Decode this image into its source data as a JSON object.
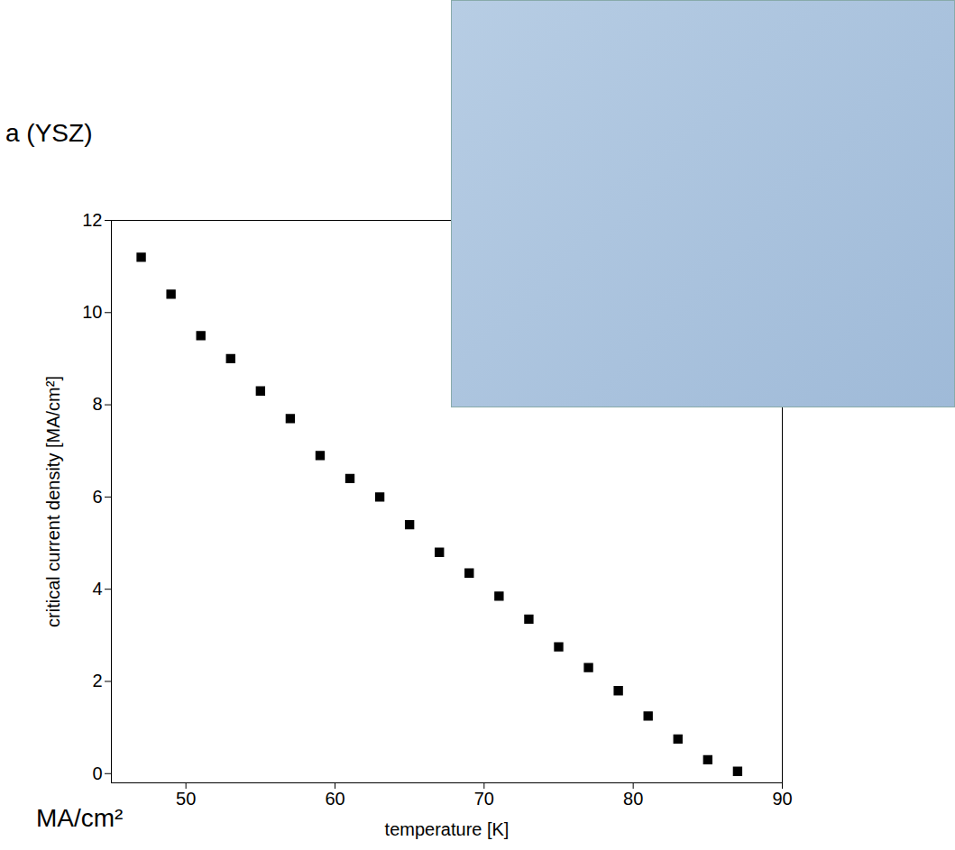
{
  "chart_data": {
    "type": "scatter",
    "x_label": "temperature [K]",
    "y_label": "critical current density [MA/cm²]",
    "annotations": [
      "a (YSZ)",
      "MA/cm²"
    ],
    "x": [
      47,
      49,
      51,
      53,
      55,
      57,
      59,
      61,
      63,
      65,
      67,
      69,
      71,
      73,
      75,
      77,
      79,
      81,
      83,
      85,
      87
    ],
    "values": [
      11.2,
      10.4,
      9.5,
      9.0,
      8.3,
      7.7,
      6.9,
      6.4,
      6.0,
      5.4,
      4.8,
      4.35,
      3.85,
      3.35,
      2.75,
      2.3,
      1.8,
      1.25,
      0.75,
      0.3,
      0.05
    ],
    "color": "#000000",
    "marker": "square",
    "xlim": [
      45,
      90
    ],
    "xticks": [
      50,
      60,
      70,
      80,
      90
    ],
    "ylim": [
      -0.2,
      12
    ],
    "yticks": [
      0,
      2,
      4,
      6,
      8,
      10,
      12
    ],
    "grid": false
  }
}
